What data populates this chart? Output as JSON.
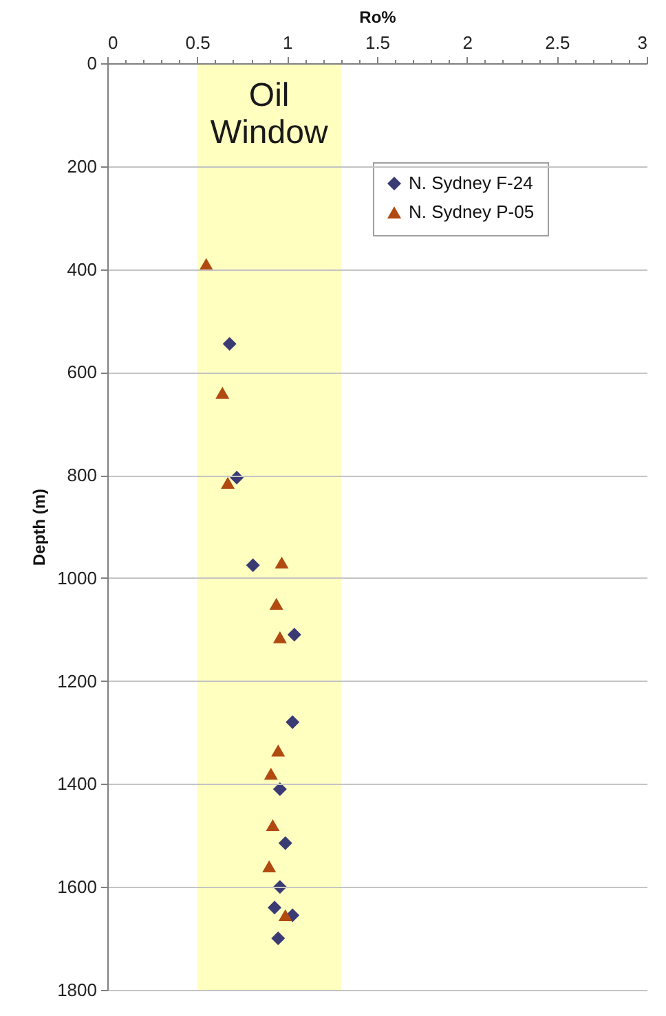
{
  "chart_data": {
    "type": "scatter",
    "xlabel": "Ro%",
    "ylabel": "Depth (m)",
    "xlim": [
      0,
      3
    ],
    "xticks": [
      0,
      {
        "value": 0.1,
        "label": null
      },
      {
        "value": 0.2,
        "label": null
      },
      {
        "value": 0.3,
        "label": null
      },
      {
        "value": 0.4,
        "label": null
      },
      0.5,
      {
        "value": 0.6,
        "label": null
      },
      {
        "value": 0.7,
        "label": null
      },
      {
        "value": 0.8,
        "label": null
      },
      {
        "value": 0.9,
        "label": null
      },
      1,
      {
        "value": 1.1,
        "label": null
      },
      {
        "value": 1.2,
        "label": null
      },
      {
        "value": 1.3,
        "label": null
      },
      {
        "value": 1.4,
        "label": null
      },
      1.5,
      {
        "value": 1.6,
        "label": null
      },
      {
        "value": 1.7,
        "label": null
      },
      {
        "value": 1.8,
        "label": null
      },
      {
        "value": 1.9,
        "label": null
      },
      2,
      {
        "value": 2.1,
        "label": null
      },
      {
        "value": 2.2,
        "label": null
      },
      {
        "value": 2.3,
        "label": null
      },
      {
        "value": 2.4,
        "label": null
      },
      2.5,
      {
        "value": 2.6,
        "label": null
      },
      {
        "value": 2.7,
        "label": null
      },
      {
        "value": 2.8,
        "label": null
      },
      {
        "value": 2.9,
        "label": null
      },
      3
    ],
    "ylim": [
      1800,
      0
    ],
    "yticks": [
      0,
      200,
      400,
      600,
      800,
      1000,
      1200,
      1400,
      1600,
      1800
    ],
    "grid": "y",
    "legend": "top right",
    "bands": [
      {
        "axis": "x",
        "from": 0.5,
        "to": 1.3,
        "label": "Oil Window",
        "color": "#ffffc0"
      }
    ],
    "series": [
      {
        "name": "N. Sydney F-24",
        "color": "#3b3b74",
        "marker": "diamond",
        "x": [
          0.68,
          0.72,
          0.81,
          1.04,
          1.03,
          0.96,
          0.99,
          0.96,
          0.93,
          1.03,
          0.95
        ],
        "values": [
          545,
          805,
          975,
          1110,
          1280,
          1410,
          1515,
          1600,
          1640,
          1655,
          1700
        ]
      },
      {
        "name": "N. Sydney P-05",
        "color": "#b04a10",
        "marker": "triangle",
        "x": [
          0.55,
          0.64,
          0.67,
          0.97,
          0.94,
          0.96,
          0.95,
          0.91,
          0.92,
          0.9,
          0.99
        ],
        "values": [
          390,
          640,
          815,
          970,
          1050,
          1115,
          1335,
          1380,
          1480,
          1560,
          1655
        ]
      }
    ]
  }
}
